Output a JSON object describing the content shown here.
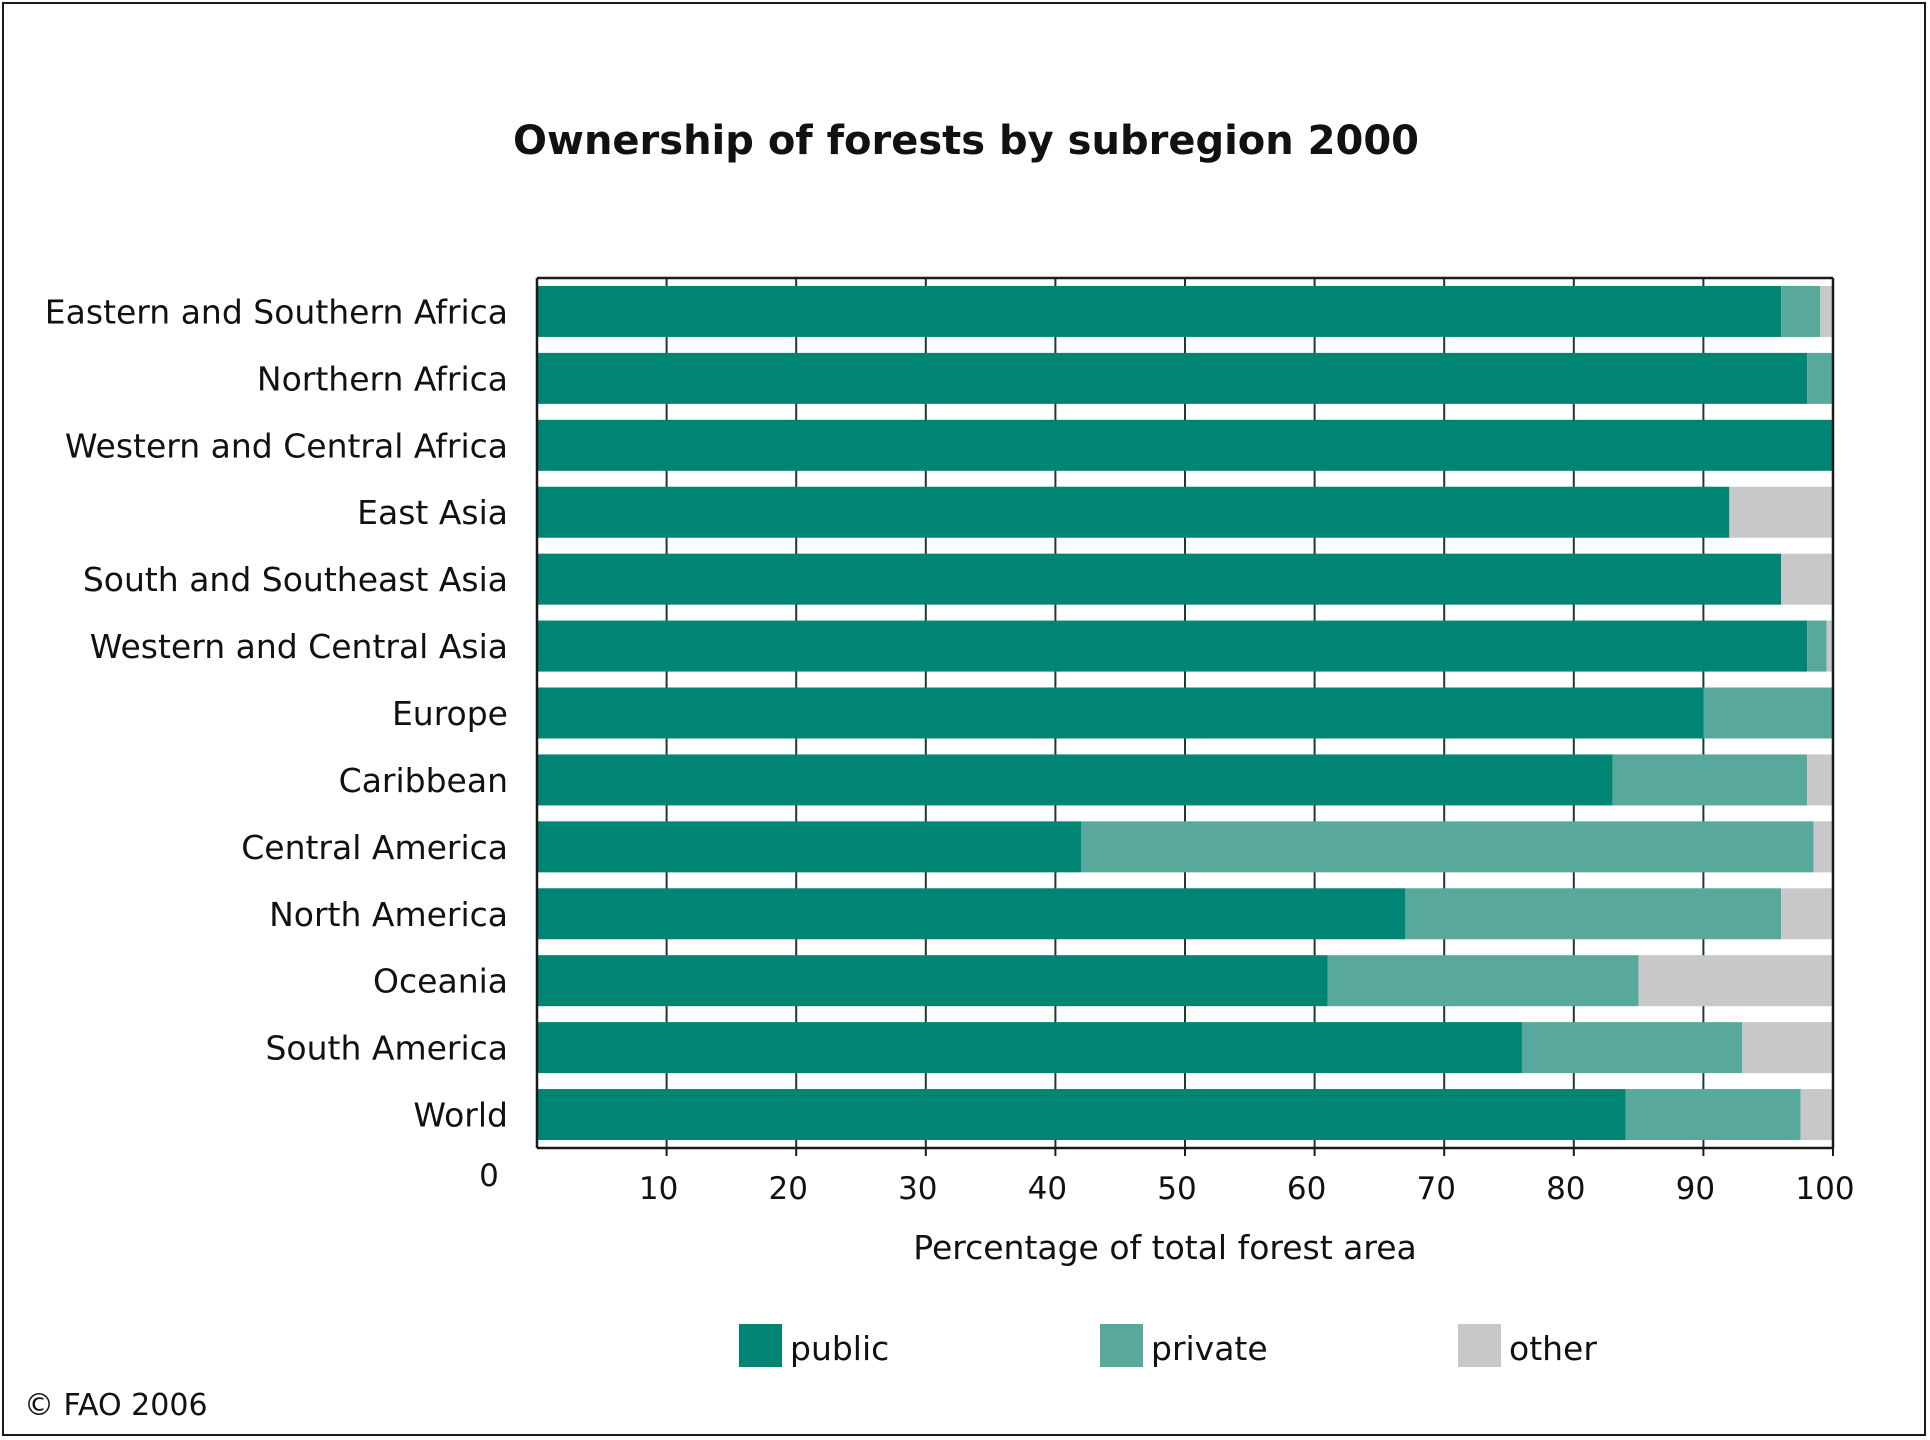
{
  "chart_data": {
    "type": "bar",
    "orientation": "horizontal",
    "stacked": true,
    "title": "Ownership of forests by subregion 2000",
    "xlabel": "Percentage of total forest area",
    "ylabel": "",
    "xlim": [
      0,
      100
    ],
    "x_ticks": [
      10,
      20,
      30,
      40,
      50,
      60,
      70,
      80,
      90,
      100
    ],
    "origin_label": "0",
    "grid": true,
    "legend_position": "bottom",
    "categories": [
      "Eastern and Southern Africa",
      "Northern Africa",
      "Western and Central Africa",
      "East Asia",
      "South and Southeast Asia",
      "Western and Central Asia",
      "Europe",
      "Caribbean",
      "Central America",
      "North America",
      "Oceania",
      "South America",
      "World"
    ],
    "series": [
      {
        "name": "public",
        "color": "#008575",
        "values": [
          96,
          98,
          100,
          92,
          96,
          98,
          90,
          83,
          42,
          67,
          61,
          76,
          84
        ]
      },
      {
        "name": "private",
        "color": "#58a89c",
        "values": [
          3,
          2,
          0,
          0,
          0,
          1.5,
          10,
          15,
          56.5,
          29,
          24,
          17,
          13.5
        ]
      },
      {
        "name": "other",
        "color": "#c8c8ca",
        "values": [
          1,
          0,
          0,
          8,
          4,
          0.5,
          0,
          2,
          1.5,
          4,
          15,
          7,
          2.5
        ]
      }
    ]
  },
  "copyright": "© FAO 2006"
}
